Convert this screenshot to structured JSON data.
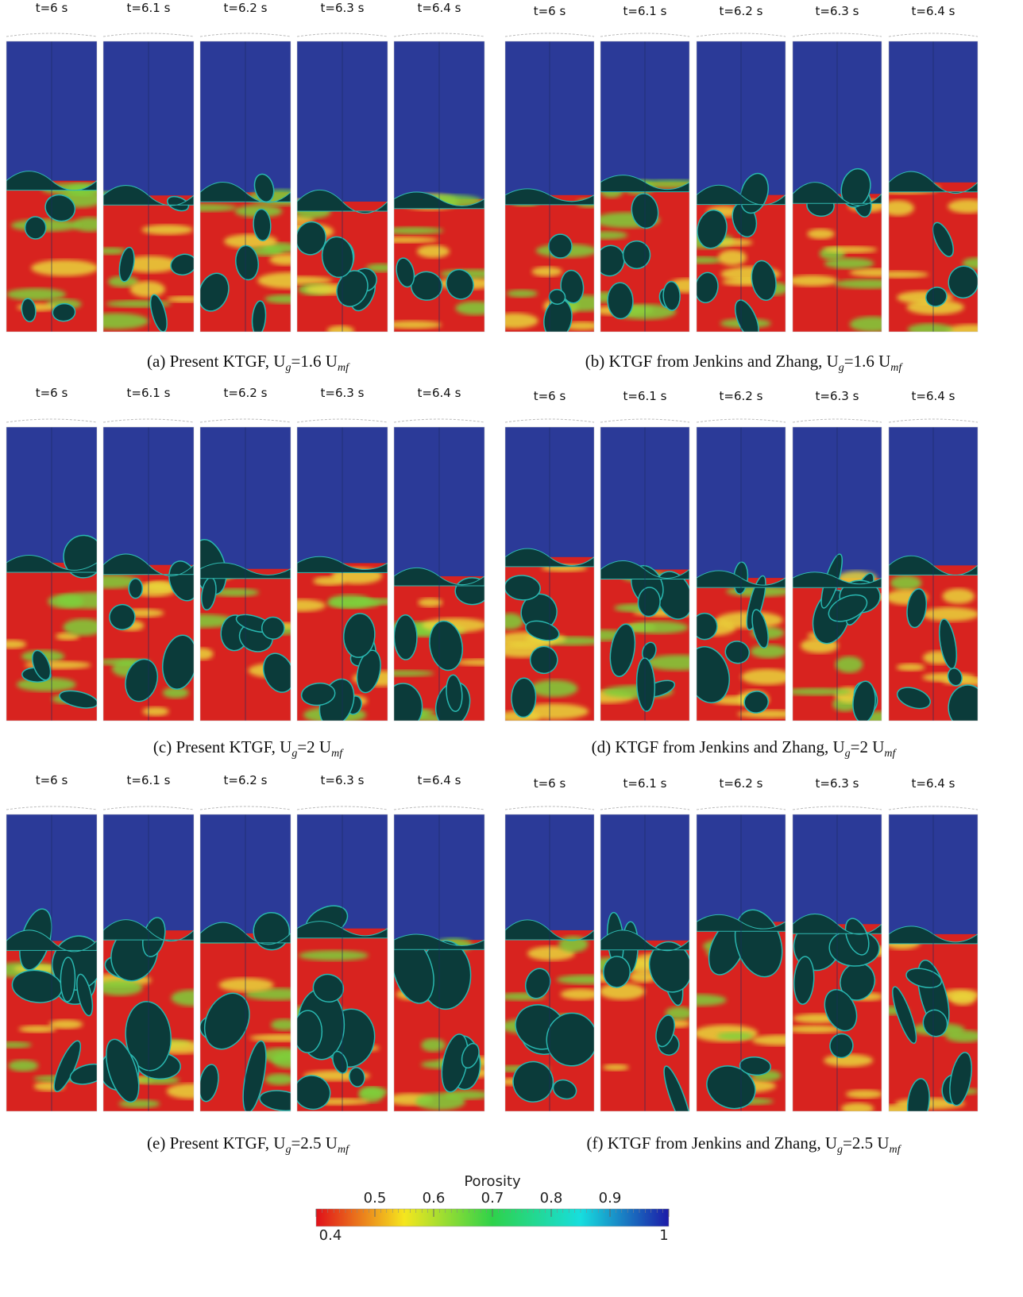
{
  "panels": [
    {
      "times": [
        "t=6 s",
        "t=6.1 s",
        "t=6.2 s",
        "t=6.3 s",
        "t=6.4 s"
      ],
      "caption": [
        "(a) Present KTGF, U",
        "g",
        "=1.6 U",
        "mf"
      ]
    },
    {
      "times": [
        "t=6 s",
        "t=6.1 s",
        "t=6.2 s",
        "t=6.3 s",
        "t=6.4 s"
      ],
      "caption": [
        "(b) KTGF from Jenkins and Zhang, U",
        "g",
        "=1.6 U",
        "mf"
      ]
    },
    {
      "times": [
        "t=6 s",
        "t=6.1 s",
        "t=6.2 s",
        "t=6.3 s",
        "t=6.4 s"
      ],
      "caption": [
        "(c) Present KTGF, U",
        "g",
        "=2 U",
        "mf"
      ]
    },
    {
      "times": [
        "t=6 s",
        "t=6.1 s",
        "t=6.2 s",
        "t=6.3 s",
        "t=6.4 s"
      ],
      "caption": [
        "(d) KTGF from Jenkins and Zhang, U",
        "g",
        "=2 U",
        "mf"
      ]
    },
    {
      "times": [
        "t=6 s",
        "t=6.1 s",
        "t=6.2 s",
        "t=6.3 s",
        "t=6.4 s"
      ],
      "caption": [
        "(e) Present KTGF, U",
        "g",
        "=2.5 U",
        "mf"
      ]
    },
    {
      "times": [
        "t=6 s",
        "t=6.1 s",
        "t=6.2 s",
        "t=6.3 s",
        "t=6.4 s"
      ],
      "caption": [
        "(f) KTGF from Jenkins and Zhang, U",
        "g",
        "=2.5 U",
        "mf"
      ]
    }
  ],
  "colorbar": {
    "title": "Porosity",
    "range": [
      0.4,
      1
    ],
    "ticks": [
      0.4,
      0.5,
      0.6,
      0.7,
      0.8,
      0.9,
      1
    ]
  }
}
